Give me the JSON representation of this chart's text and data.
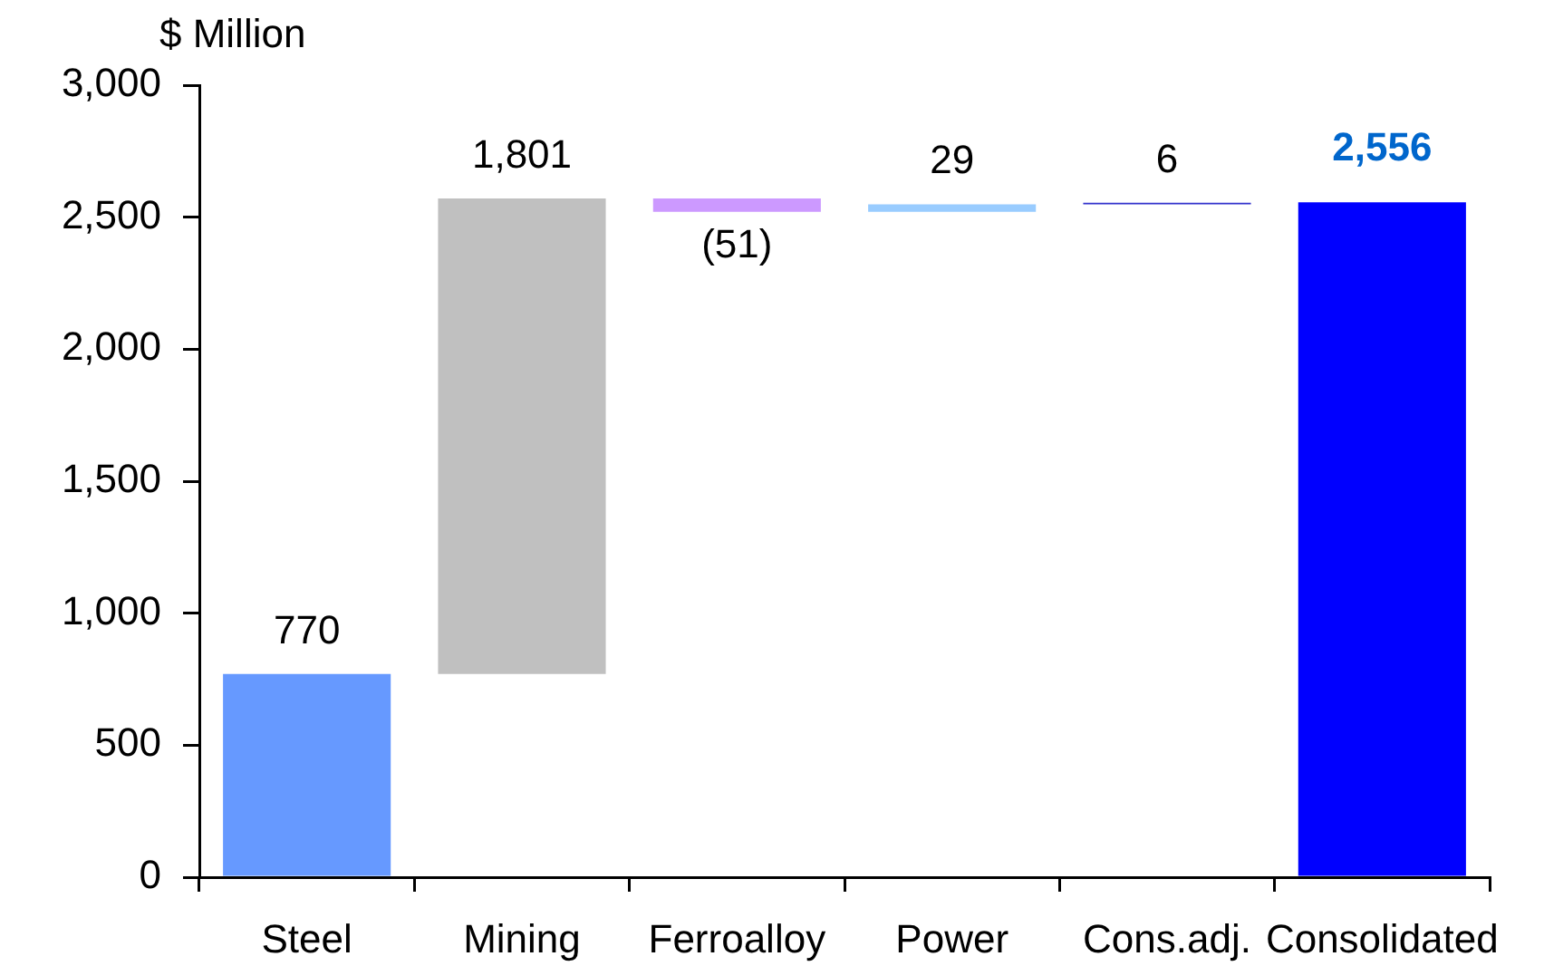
{
  "chart_data": {
    "type": "bar",
    "ylabel": "$ Million",
    "categories": [
      "Steel",
      "Mining",
      "Ferroalloy",
      "Power",
      "Cons.adj.",
      "Consolidated"
    ],
    "values": [
      770,
      1801,
      -51,
      29,
      6,
      2556
    ],
    "base": [
      0,
      770,
      2571,
      2520,
      2549,
      0
    ],
    "colors": [
      "#6699ff",
      "#c0c0c0",
      "#cc99ff",
      "#99ccff",
      "#3333cc",
      "#0000ff"
    ],
    "value_labels": [
      "770",
      "1,801",
      "(51)",
      "29",
      "6",
      "2,556"
    ],
    "ylim": [
      0,
      3000
    ],
    "yticks": [
      0,
      500,
      {
        "value": 1000,
        "label": "1,000"
      },
      {
        "value": 1500,
        "label": "1,500"
      },
      {
        "value": 2000,
        "label": "2,000"
      },
      {
        "value": 2500,
        "label": "2,500"
      },
      {
        "value": 3000,
        "label": "3,000"
      }
    ]
  }
}
